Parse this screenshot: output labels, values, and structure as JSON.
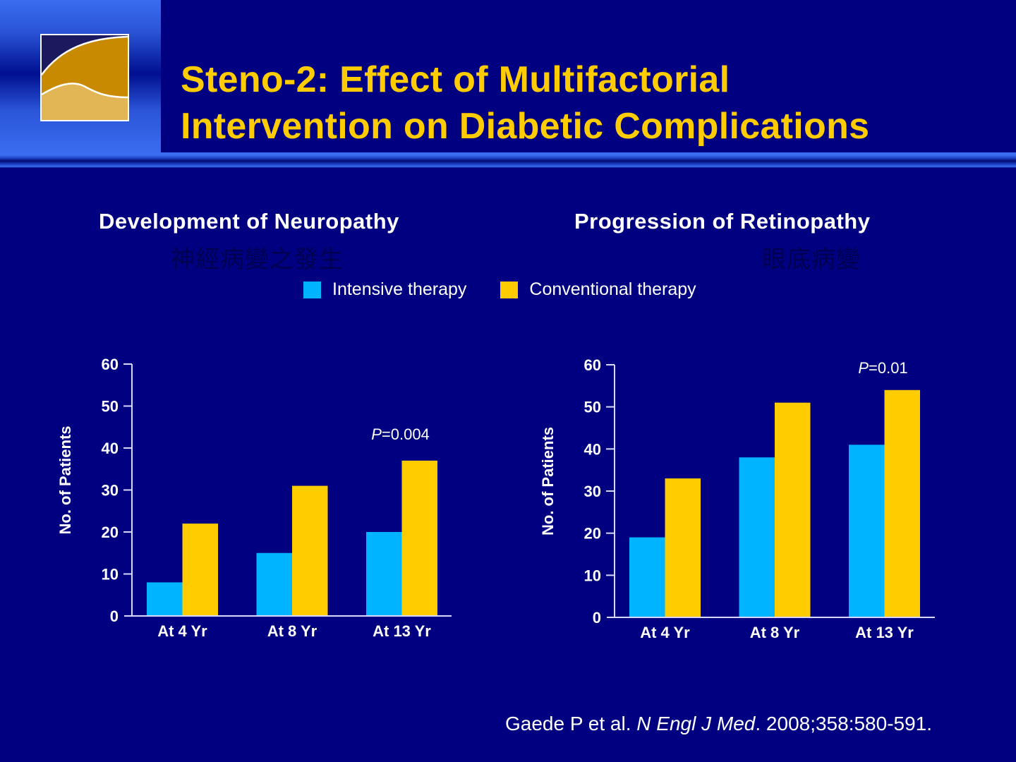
{
  "slide": {
    "title_line1": "Steno-2: Effect of Multifactorial",
    "title_line2": "Intervention on Diabetic Complications",
    "colors": {
      "background": "#000080",
      "title": "#ffcc00",
      "intensive": "#00b4ff",
      "conventional": "#ffcc00",
      "text": "#ffffff"
    },
    "logo_icon": "wave-logo-icon"
  },
  "legend": [
    {
      "label": "Intensive therapy",
      "color": "#00b4ff"
    },
    {
      "label": "Conventional therapy",
      "color": "#ffcc00"
    }
  ],
  "panels": [
    {
      "subtitle": "Development of Neuropathy",
      "subtitle_zh": "神經病變之發生"
    },
    {
      "subtitle": "Progression of Retinopathy",
      "subtitle_zh": "眼底病變"
    }
  ],
  "citation": {
    "authors": "Gaede P et al. ",
    "journal": "N Engl J Med",
    "details": ". 2008;358:580-591."
  },
  "chart_data": [
    {
      "type": "bar",
      "title": "Development of Neuropathy",
      "xlabel": "",
      "ylabel": "No. of Patients",
      "categories": [
        "At 4 Yr",
        "At 8 Yr",
        "At 13 Yr"
      ],
      "series": [
        {
          "name": "Intensive therapy",
          "values": [
            8,
            15,
            20
          ]
        },
        {
          "name": "Conventional therapy",
          "values": [
            22,
            31,
            37
          ]
        }
      ],
      "ylim": [
        0,
        60
      ],
      "yticks": [
        0,
        10,
        20,
        30,
        40,
        50,
        60
      ],
      "grid": false,
      "legend": "top-center",
      "annotation": {
        "italic": "P",
        "text": "=0.004",
        "category": "At 13 Yr"
      }
    },
    {
      "type": "bar",
      "title": "Progression of Retinopathy",
      "xlabel": "",
      "ylabel": "No. of Patients",
      "categories": [
        "At 4 Yr",
        "At 8 Yr",
        "At 13 Yr"
      ],
      "series": [
        {
          "name": "Intensive therapy",
          "values": [
            19,
            38,
            41
          ]
        },
        {
          "name": "Conventional therapy",
          "values": [
            33,
            51,
            54
          ]
        }
      ],
      "ylim": [
        0,
        60
      ],
      "yticks": [
        0,
        10,
        20,
        30,
        40,
        50,
        60
      ],
      "grid": false,
      "legend": "top-center",
      "annotation": {
        "italic": "P",
        "text": "=0.01",
        "category": "At 13 Yr"
      }
    }
  ]
}
